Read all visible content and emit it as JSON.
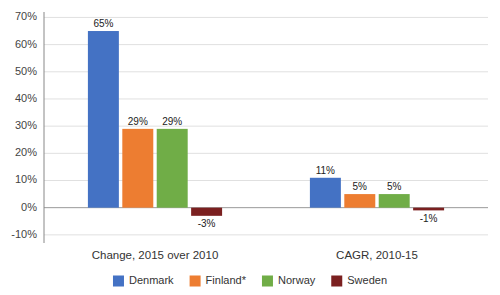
{
  "chart_data": {
    "type": "bar",
    "categories": [
      "Change, 2015 over 2010",
      "CAGR, 2010-15"
    ],
    "series": [
      {
        "name": "Denmark",
        "color": "#4472C4",
        "values": [
          65,
          11
        ],
        "value_labels": [
          "65%",
          "11%"
        ]
      },
      {
        "name": "Finland*",
        "color": "#ED7D31",
        "values": [
          29,
          5
        ],
        "value_labels": [
          "29%",
          "5%"
        ]
      },
      {
        "name": "Norway",
        "color": "#70AD47",
        "values": [
          29,
          5
        ],
        "value_labels": [
          "29%",
          "5%"
        ]
      },
      {
        "name": "Sweden",
        "color": "#7B2020",
        "values": [
          -3,
          -1
        ],
        "value_labels": [
          "-3%",
          "-1%"
        ]
      }
    ],
    "ylim": [
      -13,
      72
    ],
    "yticks": [
      {
        "value": -10,
        "label": "-10%"
      },
      {
        "value": 0,
        "label": "0%"
      },
      {
        "value": 10,
        "label": "10%"
      },
      {
        "value": 20,
        "label": "20%"
      },
      {
        "value": 30,
        "label": "30%"
      },
      {
        "value": 40,
        "label": "40%"
      },
      {
        "value": 50,
        "label": "50%"
      },
      {
        "value": 60,
        "label": "60%"
      },
      {
        "value": 70,
        "label": "70%"
      }
    ],
    "grid": true,
    "legend": "bottom",
    "data_labels": true
  }
}
